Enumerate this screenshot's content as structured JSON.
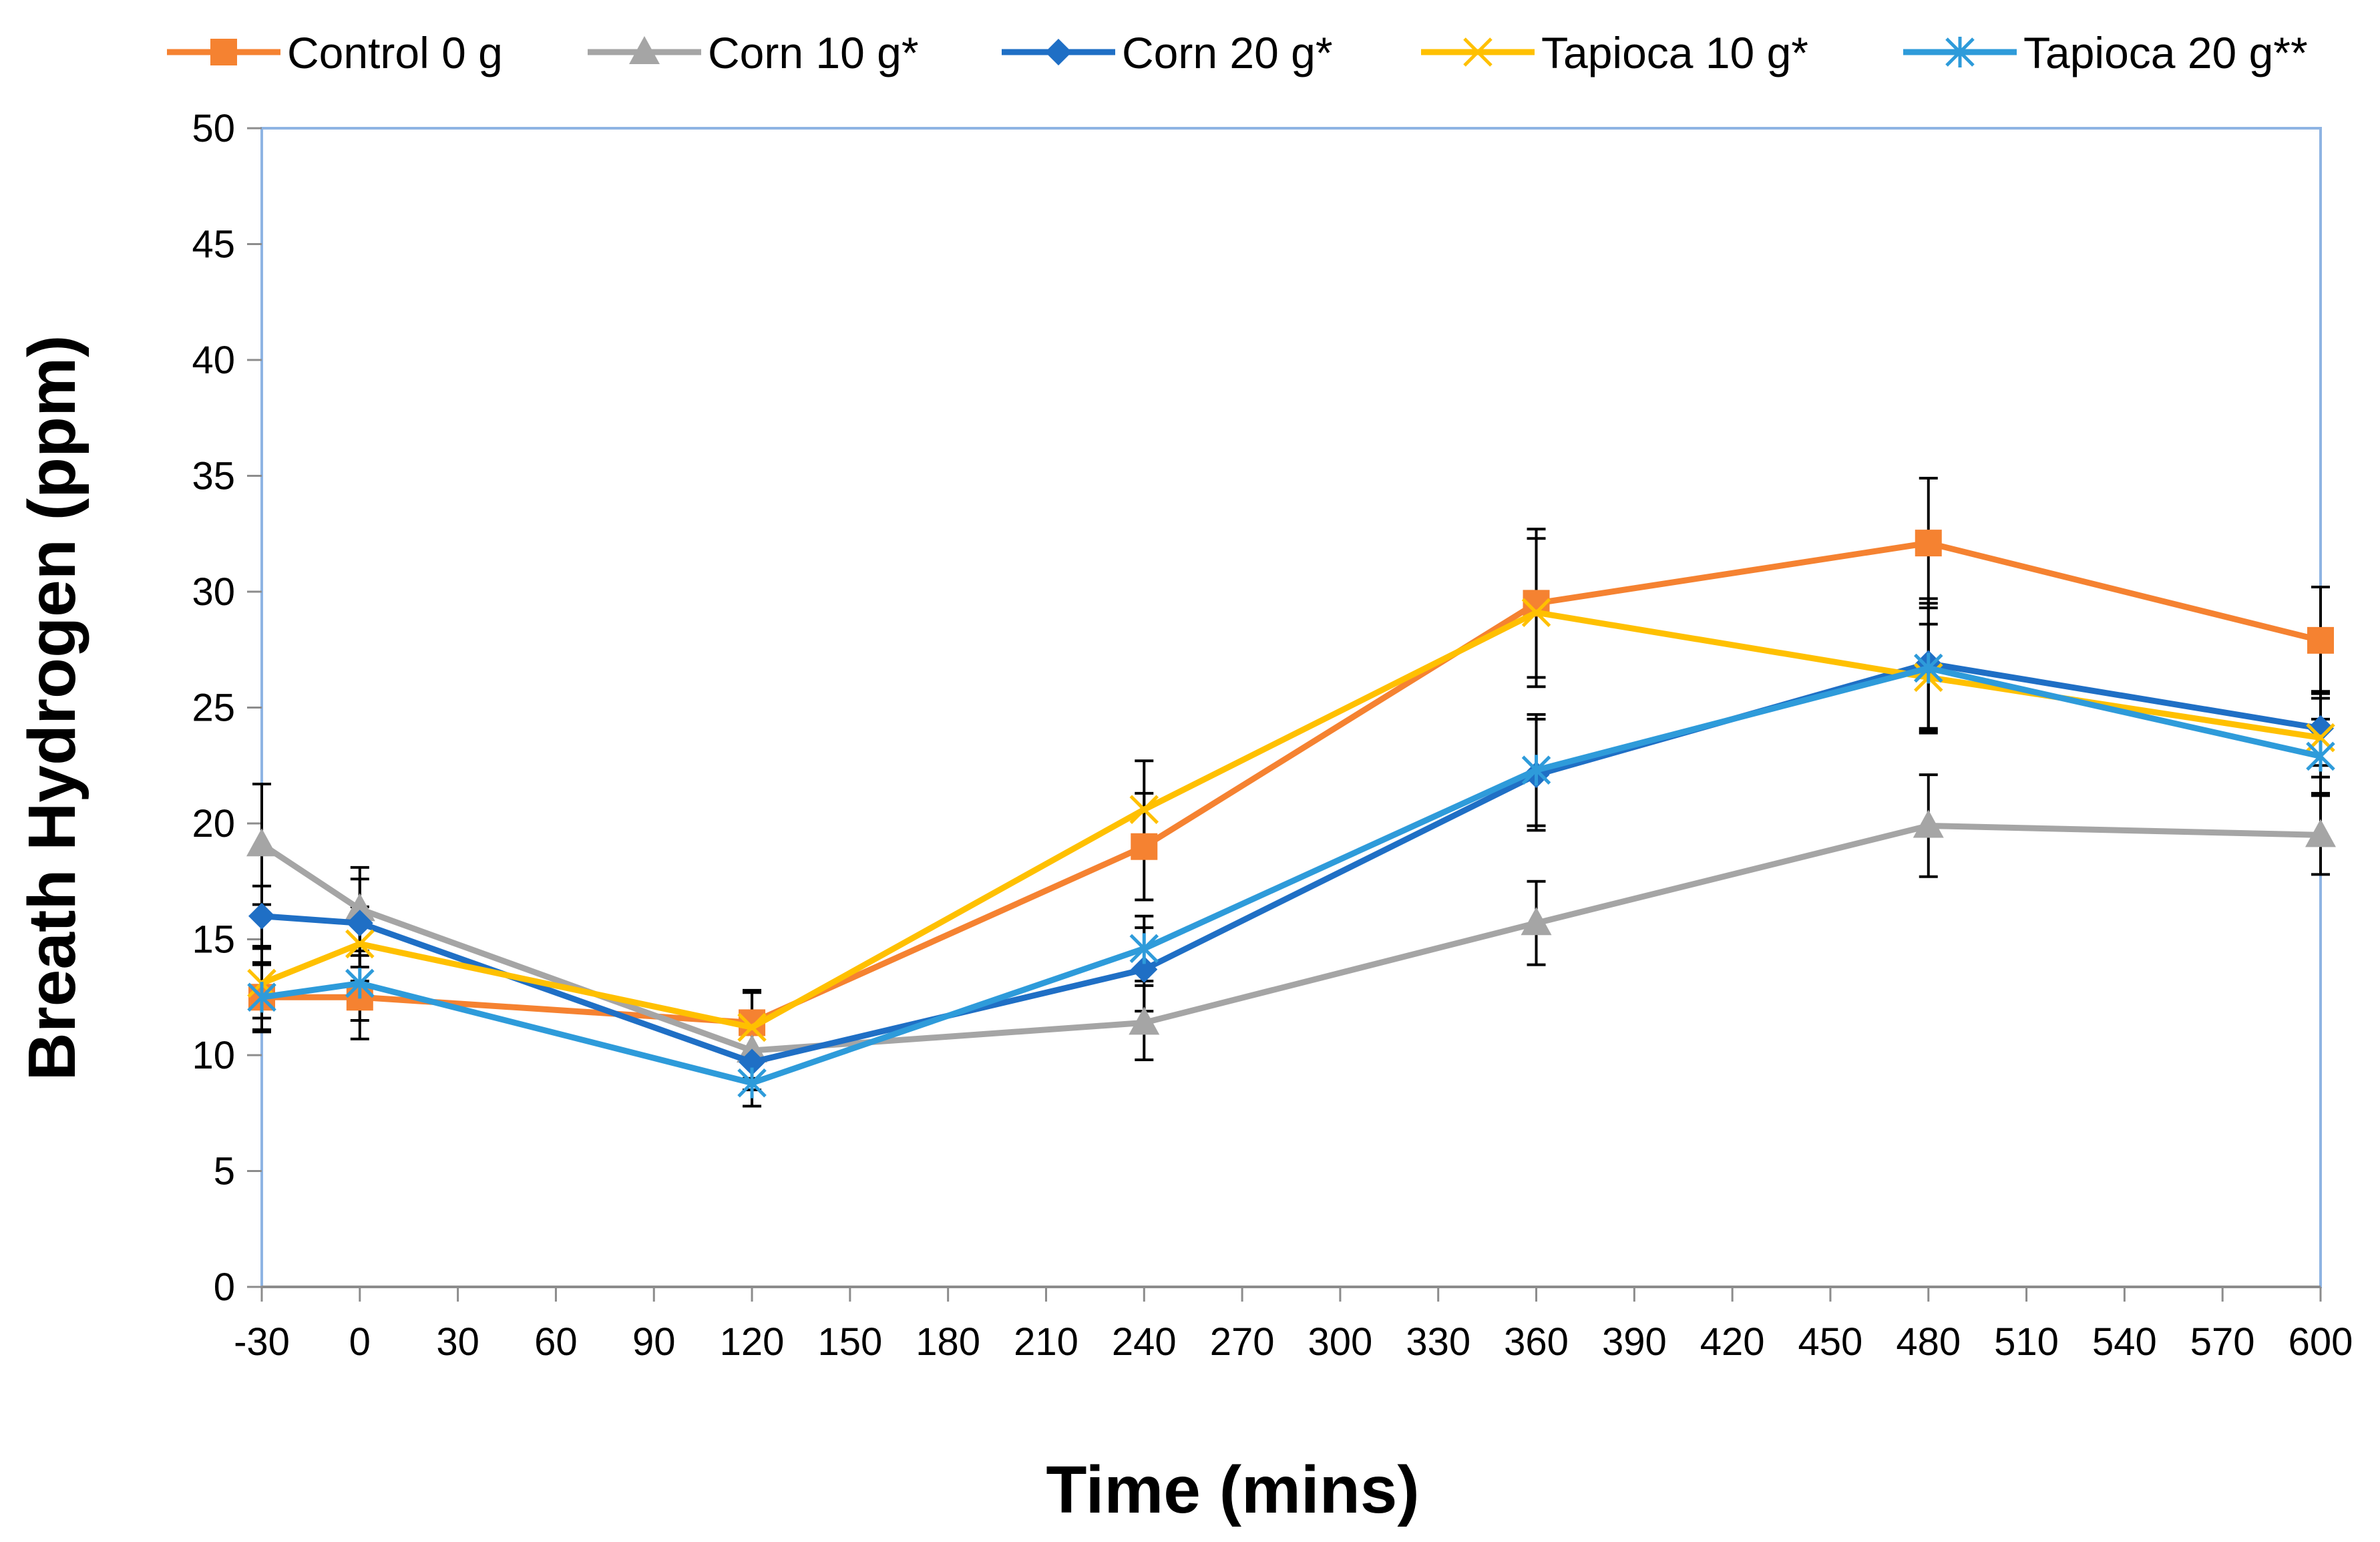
{
  "chart_data": {
    "type": "line",
    "title": "",
    "xlabel": "Time (mins)",
    "ylabel": "Breath Hydrogen (ppm)",
    "xlim": [
      -30,
      600
    ],
    "ylim": [
      0,
      50
    ],
    "x_ticks": [
      -30,
      0,
      30,
      60,
      90,
      120,
      150,
      180,
      210,
      240,
      270,
      300,
      330,
      360,
      390,
      420,
      450,
      480,
      510,
      540,
      570,
      600
    ],
    "y_ticks": [
      0,
      5,
      10,
      15,
      20,
      25,
      30,
      35,
      40,
      45,
      50
    ],
    "grid": false,
    "legend_position": "top",
    "x": [
      -30,
      0,
      120,
      240,
      360,
      480,
      600
    ],
    "series": [
      {
        "name": "Control 0 g",
        "color": "#F58231",
        "marker": "square",
        "values": [
          12.5,
          12.5,
          11.4,
          19.0,
          29.5,
          32.1,
          27.9
        ],
        "errors": [
          1.5,
          1.8,
          1.4,
          2.3,
          3.2,
          2.8,
          2.3
        ]
      },
      {
        "name": "Corn 10 g*",
        "color": "#A5A5A5",
        "marker": "triangle",
        "values": [
          19.1,
          16.3,
          10.2,
          11.4,
          15.7,
          19.9,
          19.5
        ],
        "errors": [
          2.6,
          1.8,
          1.2,
          1.6,
          1.8,
          2.2,
          1.7
        ]
      },
      {
        "name": "Corn 20 g*",
        "color": "#1F6FC5",
        "marker": "diamond",
        "values": [
          16.0,
          15.7,
          9.7,
          13.7,
          22.1,
          26.9,
          24.1
        ],
        "errors": [
          1.3,
          1.9,
          1.2,
          1.8,
          2.4,
          2.8,
          1.6
        ]
      },
      {
        "name": "Tapioca 10 g*",
        "color": "#FFC000",
        "marker": "x",
        "values": [
          13.1,
          14.8,
          11.2,
          20.6,
          29.1,
          26.3,
          23.7
        ],
        "errors": [
          1.5,
          1.6,
          1.5,
          2.1,
          3.2,
          2.3,
          1.7
        ]
      },
      {
        "name": "Tapioca 20 g**",
        "color": "#2E9BDA",
        "marker": "asterisk",
        "values": [
          12.5,
          13.1,
          8.8,
          14.6,
          22.3,
          26.7,
          22.9
        ],
        "errors": [
          1.4,
          1.6,
          1.0,
          1.4,
          2.4,
          2.8,
          1.6
        ]
      }
    ]
  }
}
